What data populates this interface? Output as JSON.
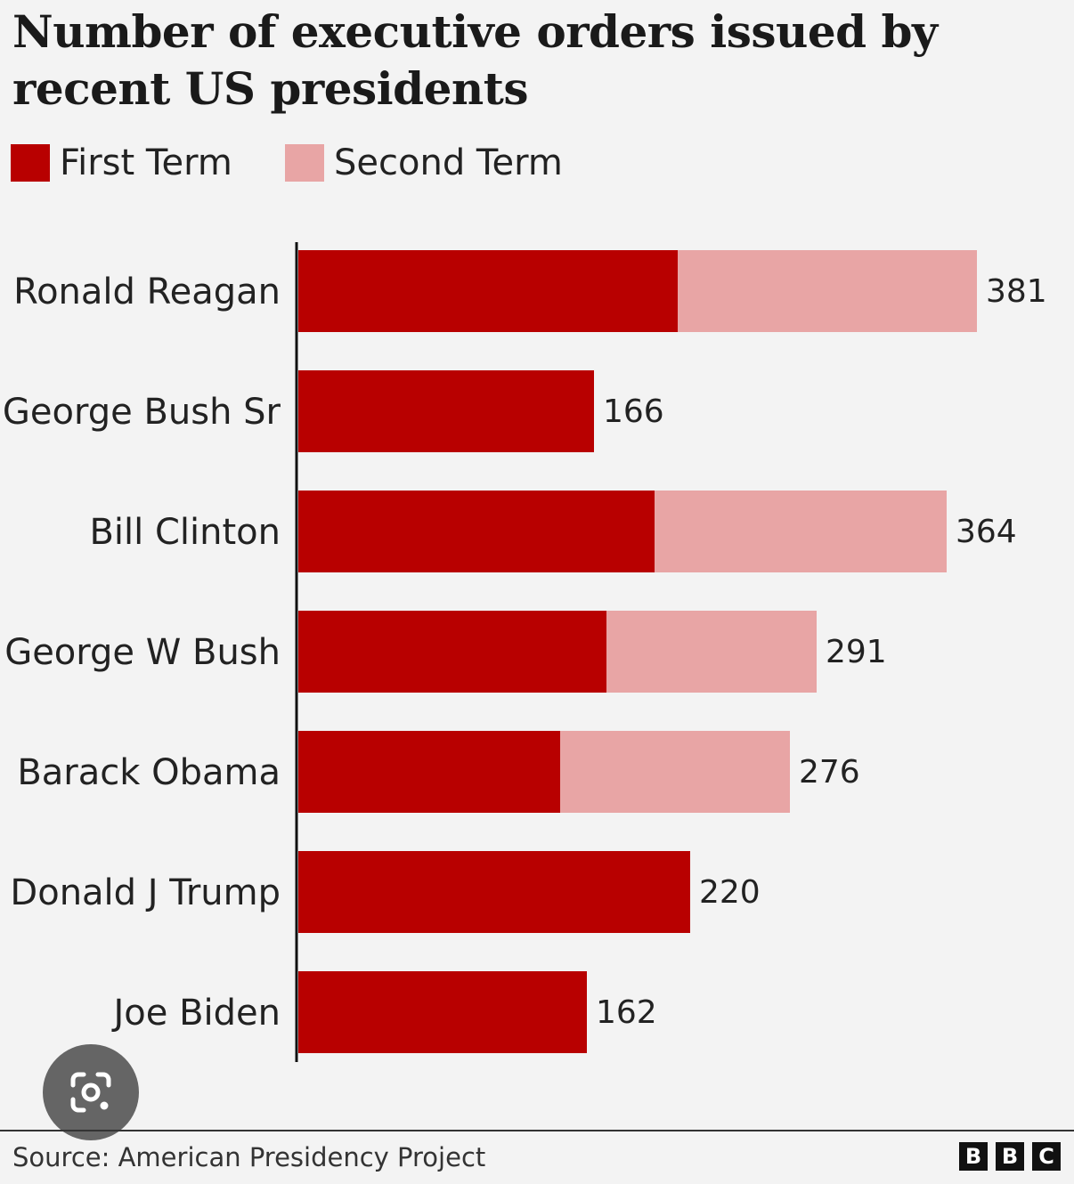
{
  "title": "Number of executive orders issued by recent US presidents",
  "legend": {
    "first_term": "First Term",
    "second_term": "Second Term"
  },
  "colors": {
    "first_term": "#b80000",
    "second_term": "#e8a5a5",
    "background": "#f3f3f3"
  },
  "chart_data": {
    "type": "bar",
    "orientation": "horizontal",
    "stacked": true,
    "title": "Number of executive orders issued by recent US presidents",
    "categories": [
      "Ronald Reagan",
      "George Bush Sr",
      "Bill Clinton",
      "George W Bush",
      "Barack Obama",
      "Donald J Trump",
      "Joe Biden"
    ],
    "series": [
      {
        "name": "First Term",
        "values": [
          213,
          166,
          200,
          173,
          147,
          220,
          162
        ]
      },
      {
        "name": "Second Term",
        "values": [
          168,
          0,
          164,
          118,
          129,
          0,
          0
        ]
      }
    ],
    "totals": [
      "381",
      "166",
      "364",
      "291",
      "276",
      "220",
      "162"
    ],
    "xlim": [
      0,
      400
    ],
    "grid": false,
    "legend_position": "top-left"
  },
  "footer": {
    "source": "Source: American Presidency Project",
    "logo_letters": [
      "B",
      "B",
      "C"
    ]
  },
  "lens_icon": "google-lens-camera-icon"
}
